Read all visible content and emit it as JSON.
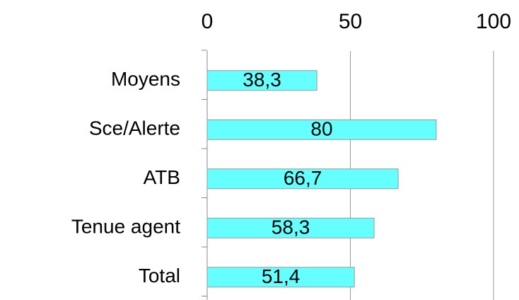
{
  "chart_data": {
    "type": "hbar",
    "categories": [
      "Moyens",
      "Sce/Alerte",
      "ATB",
      "Tenue agent",
      "Total"
    ],
    "values": [
      38.3,
      80,
      66.7,
      58.3,
      51.4
    ],
    "value_labels": [
      "38,3",
      "80",
      "66,7",
      "58,3",
      "51,4"
    ],
    "color": "#66ffff",
    "xlim": [
      0,
      100
    ],
    "xticks": [
      0,
      50,
      100
    ],
    "grid": true
  }
}
